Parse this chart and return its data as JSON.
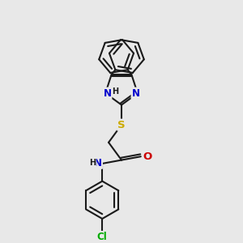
{
  "bg_color": "#e8e8e8",
  "bond_color": "#1a1a1a",
  "bond_width": 1.5,
  "atom_colors": {
    "N": "#0000cc",
    "O": "#cc0000",
    "S": "#ccaa00",
    "Cl": "#00aa00",
    "C": "#1a1a1a",
    "H": "#1a1a1a"
  },
  "font_size": 8.5,
  "fig_size": [
    3.0,
    3.0
  ],
  "dpi": 100
}
